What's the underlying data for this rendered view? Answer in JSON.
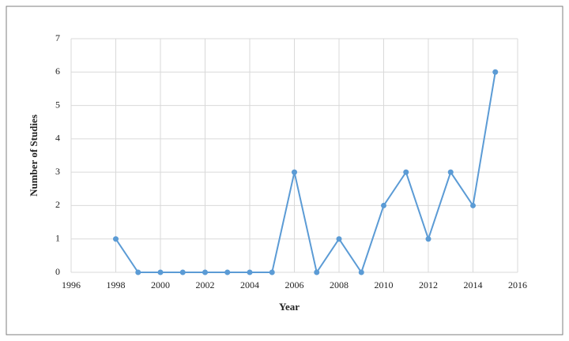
{
  "chart_data": {
    "type": "line",
    "x": [
      1998,
      1999,
      2000,
      2001,
      2002,
      2003,
      2004,
      2005,
      2006,
      2007,
      2008,
      2009,
      2010,
      2011,
      2012,
      2013,
      2014,
      2015
    ],
    "series": [
      {
        "name": "Number of Studies",
        "color": "#5b9bd5",
        "values": [
          1,
          0,
          0,
          0,
          0,
          0,
          0,
          0,
          3,
          0,
          1,
          0,
          2,
          3,
          1,
          3,
          2,
          6
        ]
      }
    ],
    "xlabel": "Year",
    "ylabel": "Number of Studies",
    "xlim": [
      1996,
      2016
    ],
    "xticks": [
      1996,
      1998,
      2000,
      2002,
      2004,
      2006,
      2008,
      2010,
      2012,
      2014,
      2016
    ],
    "ylim": [
      0,
      7
    ],
    "yticks": [
      0,
      1,
      2,
      3,
      4,
      5,
      6,
      7
    ],
    "grid": true
  }
}
